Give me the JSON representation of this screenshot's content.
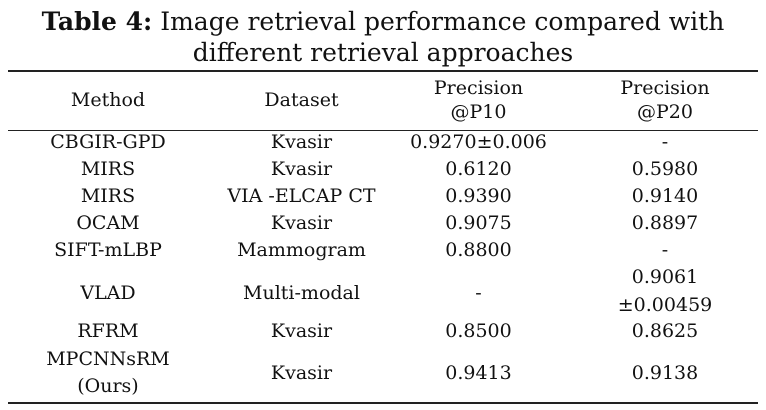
{
  "caption": {
    "label": "Table 4:",
    "text": " Image retrieval performance compared with",
    "text_line2": "different retrieval approaches"
  },
  "table": {
    "headers": {
      "method": "Method",
      "dataset": "Dataset",
      "p10_line1": "Precision",
      "p10_line2": "@P10",
      "p20_line1": "Precision",
      "p20_line2": "@P20"
    },
    "rows": [
      {
        "method": "CBGIR-GPD",
        "dataset": "Kvasir",
        "p10": "0.9270±0.006",
        "p20": "-"
      },
      {
        "method": "MIRS",
        "dataset": "Kvasir",
        "p10": "0.6120",
        "p20": "0.5980"
      },
      {
        "method": "MIRS",
        "dataset": "VIA -ELCAP CT",
        "p10": "0.9390",
        "p20": "0.9140"
      },
      {
        "method": "OCAM",
        "dataset": "Kvasir",
        "p10": "0.9075",
        "p20": "0.8897"
      },
      {
        "method": "SIFT-mLBP",
        "dataset": "Mammogram",
        "p10": "0.8800",
        "p20": "-"
      },
      {
        "method": "VLAD",
        "dataset": "Multi-modal",
        "p10": "-",
        "p20_line1": "0.9061",
        "p20_line2": "±0.00459"
      },
      {
        "method": "RFRM",
        "dataset": "Kvasir",
        "p10": "0.8500",
        "p20": "0.8625"
      },
      {
        "method_line1": "MPCNNsRM",
        "method_line2": "(Ours)",
        "dataset": "Kvasir",
        "p10": "0.9413",
        "p20": "0.9138"
      }
    ]
  }
}
